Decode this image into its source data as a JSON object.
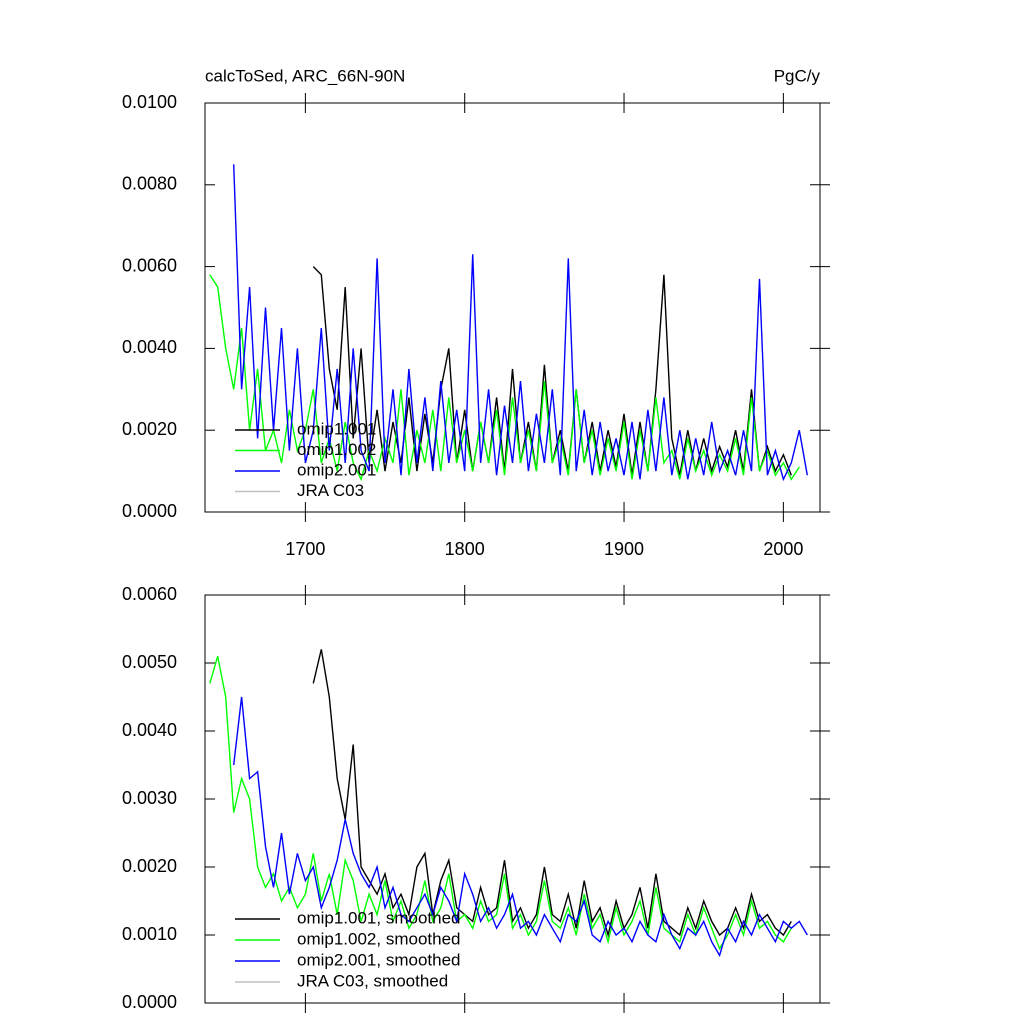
{
  "chart_data": [
    {
      "type": "line",
      "title": "calcToSed, ARC_66N-90N",
      "units": "PgC/y",
      "x": [
        1640,
        1645,
        1650,
        1655,
        1660,
        1665,
        1670,
        1675,
        1680,
        1685,
        1690,
        1695,
        1700,
        1705,
        1710,
        1715,
        1720,
        1725,
        1730,
        1735,
        1740,
        1745,
        1750,
        1755,
        1760,
        1765,
        1770,
        1775,
        1780,
        1785,
        1790,
        1795,
        1800,
        1805,
        1810,
        1815,
        1820,
        1825,
        1830,
        1835,
        1840,
        1845,
        1850,
        1855,
        1860,
        1865,
        1870,
        1875,
        1880,
        1885,
        1890,
        1895,
        1900,
        1905,
        1910,
        1915,
        1920,
        1925,
        1930,
        1935,
        1940,
        1945,
        1950,
        1955,
        1960,
        1965,
        1970,
        1975,
        1980,
        1985,
        1990,
        1995,
        2000,
        2005,
        2010,
        2015
      ],
      "xlim": [
        1637,
        2023
      ],
      "xticks": [
        1700,
        1800,
        1900,
        2000
      ],
      "xtick_labels": true,
      "ylim": [
        0,
        0.01
      ],
      "yticks": [
        {
          "value": 0,
          "label": "0.0000"
        },
        {
          "value": 0.002,
          "label": "0.0020"
        },
        {
          "value": 0.004,
          "label": "0.0040"
        },
        {
          "value": 0.006,
          "label": "0.0060"
        },
        {
          "value": 0.008,
          "label": "0.0080"
        },
        {
          "value": 0.01,
          "label": "0.0100"
        }
      ],
      "legend": "lower left",
      "series": [
        {
          "name": "omip1.001",
          "color": "#000000",
          "values": [
            null,
            null,
            null,
            null,
            null,
            null,
            null,
            null,
            null,
            null,
            null,
            null,
            null,
            0.006,
            0.0058,
            0.0035,
            0.0025,
            0.0055,
            0.0018,
            0.004,
            0.0012,
            0.0025,
            0.001,
            0.0022,
            0.0012,
            0.0028,
            0.001,
            0.0024,
            0.0012,
            0.003,
            0.004,
            0.0012,
            0.0025,
            0.001,
            0.0022,
            0.0012,
            0.0028,
            0.001,
            0.0035,
            0.0012,
            0.0022,
            0.001,
            0.0036,
            0.0012,
            0.002,
            0.001,
            0.003,
            0.0012,
            0.0022,
            0.001,
            0.002,
            0.0011,
            0.0024,
            0.0009,
            0.0022,
            0.001,
            0.003,
            0.0058,
            0.0018,
            0.0009,
            0.002,
            0.001,
            0.0018,
            0.001,
            0.0016,
            0.0011,
            0.002,
            0.001,
            0.003,
            0.001,
            0.0016,
            0.001,
            0.0014,
            0.0009,
            null,
            null
          ]
        },
        {
          "name": "omip1.002",
          "color": "#00ff00",
          "values": [
            0.0058,
            0.0055,
            0.004,
            0.003,
            0.0045,
            0.002,
            0.0035,
            0.0015,
            0.002,
            0.0012,
            0.0025,
            0.0015,
            0.002,
            0.003,
            0.0012,
            0.0018,
            0.001,
            0.0022,
            0.0012,
            0.0008,
            0.0015,
            0.001,
            0.0018,
            0.0012,
            0.003,
            0.0009,
            0.002,
            0.0012,
            0.0025,
            0.001,
            0.0028,
            0.0012,
            0.002,
            0.001,
            0.0022,
            0.0012,
            0.0025,
            0.0009,
            0.0028,
            0.0012,
            0.002,
            0.001,
            0.0032,
            0.0012,
            0.0018,
            0.0009,
            0.003,
            0.0012,
            0.002,
            0.0009,
            0.0018,
            0.001,
            0.0022,
            0.0008,
            0.002,
            0.001,
            0.0028,
            0.0012,
            0.0015,
            0.0008,
            0.0018,
            0.001,
            0.0015,
            0.0009,
            0.0014,
            0.001,
            0.0018,
            0.0009,
            0.0028,
            0.001,
            0.0015,
            0.0009,
            0.0012,
            0.0008,
            0.0011,
            null
          ]
        },
        {
          "name": "omip2.001",
          "color": "#0000ff",
          "values": [
            null,
            null,
            null,
            0.0085,
            0.003,
            0.0055,
            0.0018,
            0.005,
            0.002,
            0.0045,
            0.0015,
            0.004,
            0.0012,
            0.002,
            0.0045,
            0.0015,
            0.0035,
            0.0012,
            0.004,
            0.0015,
            0.001,
            0.0062,
            0.0012,
            0.003,
            0.0009,
            0.0035,
            0.0012,
            0.0028,
            0.001,
            0.0032,
            0.0012,
            0.0025,
            0.001,
            0.0063,
            0.0012,
            0.003,
            0.0009,
            0.0026,
            0.0012,
            0.0032,
            0.001,
            0.0024,
            0.0012,
            0.003,
            0.0009,
            0.0062,
            0.001,
            0.0025,
            0.0009,
            0.0022,
            0.001,
            0.0018,
            0.0009,
            0.0022,
            0.0008,
            0.0025,
            0.001,
            0.0028,
            0.0009,
            0.002,
            0.0008,
            0.0018,
            0.0009,
            0.0022,
            0.001,
            0.0015,
            0.0009,
            0.002,
            0.001,
            0.0057,
            0.0009,
            0.0015,
            0.0008,
            0.0012,
            0.002,
            0.0009
          ]
        },
        {
          "name": "JRA C03",
          "color": "#c0c0c0",
          "values": [
            null,
            null,
            null,
            null,
            null,
            null,
            null,
            null,
            null,
            null,
            null,
            null,
            null,
            null,
            null,
            null,
            null,
            null,
            null,
            null,
            null,
            null,
            null,
            null,
            null,
            null,
            null,
            null,
            null,
            null,
            null,
            null,
            null,
            null,
            null,
            null,
            null,
            null,
            null,
            null,
            null,
            null,
            null,
            null,
            null,
            null,
            null,
            null,
            null,
            null,
            null,
            null,
            null,
            null,
            null,
            null,
            null,
            null,
            null,
            null,
            null,
            null,
            null,
            null,
            null,
            null,
            null,
            null,
            null,
            null,
            null,
            null,
            null,
            null,
            null,
            null
          ]
        }
      ]
    },
    {
      "type": "line",
      "x": [
        1640,
        1645,
        1650,
        1655,
        1660,
        1665,
        1670,
        1675,
        1680,
        1685,
        1690,
        1695,
        1700,
        1705,
        1710,
        1715,
        1720,
        1725,
        1730,
        1735,
        1740,
        1745,
        1750,
        1755,
        1760,
        1765,
        1770,
        1775,
        1780,
        1785,
        1790,
        1795,
        1800,
        1805,
        1810,
        1815,
        1820,
        1825,
        1830,
        1835,
        1840,
        1845,
        1850,
        1855,
        1860,
        1865,
        1870,
        1875,
        1880,
        1885,
        1890,
        1895,
        1900,
        1905,
        1910,
        1915,
        1920,
        1925,
        1930,
        1935,
        1940,
        1945,
        1950,
        1955,
        1960,
        1965,
        1970,
        1975,
        1980,
        1985,
        1990,
        1995,
        2000,
        2005,
        2010,
        2015
      ],
      "xlim": [
        1637,
        2023
      ],
      "xticks": [
        1700,
        1800,
        1900,
        2000
      ],
      "xtick_labels": false,
      "ylim": [
        0,
        0.006
      ],
      "yticks": [
        {
          "value": 0,
          "label": "0.0000"
        },
        {
          "value": 0.001,
          "label": "0.0010"
        },
        {
          "value": 0.002,
          "label": "0.0020"
        },
        {
          "value": 0.003,
          "label": "0.0030"
        },
        {
          "value": 0.004,
          "label": "0.0040"
        },
        {
          "value": 0.005,
          "label": "0.0050"
        },
        {
          "value": 0.006,
          "label": "0.0060"
        }
      ],
      "legend": "lower left",
      "series": [
        {
          "name": "omip1.001, smoothed",
          "color": "#000000",
          "values": [
            null,
            null,
            null,
            null,
            null,
            null,
            null,
            null,
            null,
            null,
            null,
            null,
            null,
            0.0047,
            0.0052,
            0.0045,
            0.0033,
            0.0027,
            0.0038,
            0.002,
            0.0018,
            0.0016,
            0.0019,
            0.0014,
            0.0016,
            0.0013,
            0.002,
            0.0022,
            0.0013,
            0.0018,
            0.0021,
            0.0014,
            0.0013,
            0.0012,
            0.0017,
            0.0013,
            0.0014,
            0.0021,
            0.0012,
            0.0014,
            0.0011,
            0.0013,
            0.002,
            0.0013,
            0.0012,
            0.0016,
            0.0011,
            0.0018,
            0.0012,
            0.0014,
            0.001,
            0.0015,
            0.0011,
            0.0013,
            0.0017,
            0.0011,
            0.0019,
            0.0012,
            0.0011,
            0.001,
            0.0014,
            0.0011,
            0.0015,
            0.0012,
            0.001,
            0.0011,
            0.0014,
            0.0011,
            0.0016,
            0.0012,
            0.0013,
            0.0011,
            0.001,
            0.0012,
            null,
            null
          ]
        },
        {
          "name": "omip1.002, smoothed",
          "color": "#00ff00",
          "values": [
            0.0047,
            0.0051,
            0.0045,
            0.0028,
            0.0033,
            0.003,
            0.002,
            0.0017,
            0.0019,
            0.0015,
            0.0017,
            0.0014,
            0.0016,
            0.0022,
            0.0015,
            0.0019,
            0.0013,
            0.0021,
            0.0018,
            0.0012,
            0.0016,
            0.0013,
            0.0018,
            0.0012,
            0.0015,
            0.0011,
            0.0013,
            0.0018,
            0.0012,
            0.0014,
            0.0019,
            0.0012,
            0.0013,
            0.0011,
            0.0015,
            0.0012,
            0.0013,
            0.0019,
            0.0011,
            0.0013,
            0.001,
            0.0012,
            0.0018,
            0.0012,
            0.0011,
            0.0014,
            0.001,
            0.0016,
            0.0011,
            0.0013,
            0.0009,
            0.0014,
            0.001,
            0.0012,
            0.0015,
            0.001,
            0.0017,
            0.0011,
            0.001,
            0.0009,
            0.0013,
            0.001,
            0.0014,
            0.0011,
            0.0008,
            0.001,
            0.0013,
            0.001,
            0.0015,
            0.0011,
            0.0012,
            0.001,
            0.0009,
            0.0011,
            null,
            null
          ]
        },
        {
          "name": "omip2.001, smoothed",
          "color": "#0000ff",
          "values": [
            null,
            null,
            null,
            0.0035,
            0.0045,
            0.0033,
            0.0034,
            0.0023,
            0.0017,
            0.0025,
            0.0016,
            0.0022,
            0.0018,
            0.002,
            0.0014,
            0.0017,
            0.0021,
            0.0027,
            0.0022,
            0.0019,
            0.0017,
            0.002,
            0.0014,
            0.0017,
            0.0013,
            0.0012,
            0.0014,
            0.0016,
            0.0013,
            0.0017,
            0.0015,
            0.0012,
            0.0019,
            0.0016,
            0.0012,
            0.0014,
            0.0011,
            0.0013,
            0.0016,
            0.0011,
            0.0012,
            0.001,
            0.0013,
            0.0011,
            0.0009,
            0.0013,
            0.0012,
            0.0015,
            0.001,
            0.0009,
            0.0012,
            0.001,
            0.0011,
            0.0009,
            0.0012,
            0.001,
            0.0009,
            0.0013,
            0.001,
            0.0008,
            0.0011,
            0.001,
            0.0012,
            0.0009,
            0.0007,
            0.0011,
            0.0009,
            0.0012,
            0.001,
            0.0013,
            0.0011,
            0.0009,
            0.0012,
            0.0011,
            0.0012,
            0.001
          ]
        },
        {
          "name": "JRA C03, smoothed",
          "color": "#c0c0c0",
          "values": [
            null,
            null,
            null,
            null,
            null,
            null,
            null,
            null,
            null,
            null,
            null,
            null,
            null,
            null,
            null,
            null,
            null,
            null,
            null,
            null,
            null,
            null,
            null,
            null,
            null,
            null,
            null,
            null,
            null,
            null,
            null,
            null,
            null,
            null,
            null,
            null,
            null,
            null,
            null,
            null,
            null,
            null,
            null,
            null,
            null,
            null,
            null,
            null,
            null,
            null,
            null,
            null,
            null,
            null,
            null,
            null,
            null,
            null,
            null,
            null,
            null,
            null,
            null,
            null,
            null,
            null,
            null,
            null,
            null,
            null,
            null,
            null,
            null,
            null,
            null,
            null
          ]
        }
      ]
    }
  ]
}
